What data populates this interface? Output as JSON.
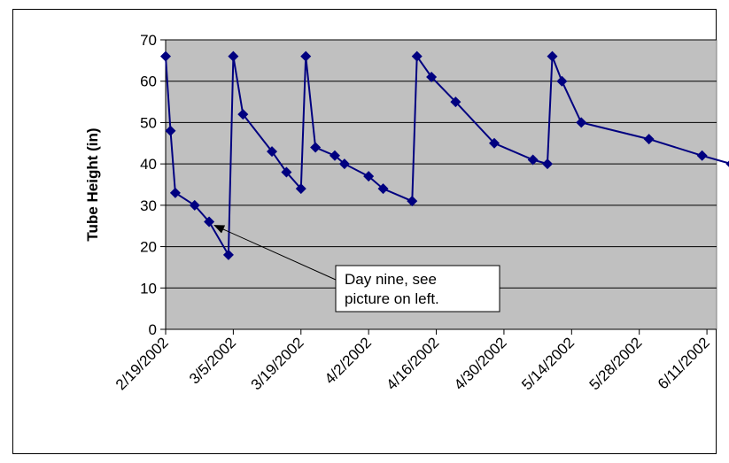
{
  "chart_data": {
    "type": "line",
    "title": "",
    "xlabel": "",
    "ylabel": "Tube Height (in)",
    "ylim": [
      0,
      70
    ],
    "yticks": [
      "0",
      "10",
      "20",
      "30",
      "40",
      "50",
      "60",
      "70"
    ],
    "xlim": [
      "2/19/2002",
      "6/13/2002"
    ],
    "xticks": [
      "2/19/2002",
      "3/5/2002",
      "3/19/2002",
      "4/2/2002",
      "4/16/2002",
      "4/30/2002",
      "5/14/2002",
      "5/28/2002",
      "6/11/2002"
    ],
    "grid": "horizontal",
    "plot_background": "#c0c0c0",
    "series": [
      {
        "color": "#000080",
        "marker": "diamond",
        "points": [
          {
            "x": "2/19/2002",
            "y": 66
          },
          {
            "x": "2/20/2002",
            "y": 48
          },
          {
            "x": "2/21/2002",
            "y": 33
          },
          {
            "x": "2/25/2002",
            "y": 30
          },
          {
            "x": "2/28/2002",
            "y": 26
          },
          {
            "x": "3/4/2002",
            "y": 18
          },
          {
            "x": "3/5/2002",
            "y": 66
          },
          {
            "x": "3/7/2002",
            "y": 52
          },
          {
            "x": "3/13/2002",
            "y": 43
          },
          {
            "x": "3/16/2002",
            "y": 38
          },
          {
            "x": "3/19/2002",
            "y": 34
          },
          {
            "x": "3/20/2002",
            "y": 66
          },
          {
            "x": "3/22/2002",
            "y": 44
          },
          {
            "x": "3/26/2002",
            "y": 42
          },
          {
            "x": "3/28/2002",
            "y": 40
          },
          {
            "x": "4/2/2002",
            "y": 37
          },
          {
            "x": "4/5/2002",
            "y": 34
          },
          {
            "x": "4/11/2002",
            "y": 31
          },
          {
            "x": "4/12/2002",
            "y": 66
          },
          {
            "x": "4/15/2002",
            "y": 61
          },
          {
            "x": "4/20/2002",
            "y": 55
          },
          {
            "x": "4/28/2002",
            "y": 45
          },
          {
            "x": "5/6/2002",
            "y": 41
          },
          {
            "x": "5/9/2002",
            "y": 40
          },
          {
            "x": "5/10/2002",
            "y": 66
          },
          {
            "x": "5/12/2002",
            "y": 60
          },
          {
            "x": "5/16/2002",
            "y": 50
          },
          {
            "x": "5/30/2002",
            "y": 46
          },
          {
            "x": "6/10/2002",
            "y": 42
          },
          {
            "x": "6/16/2002",
            "y": 40
          }
        ]
      }
    ],
    "annotations": [
      {
        "lines": [
          "Day nine, see",
          "picture on left."
        ],
        "points_to": {
          "x": "2/28/2002",
          "y": 26
        }
      }
    ]
  }
}
